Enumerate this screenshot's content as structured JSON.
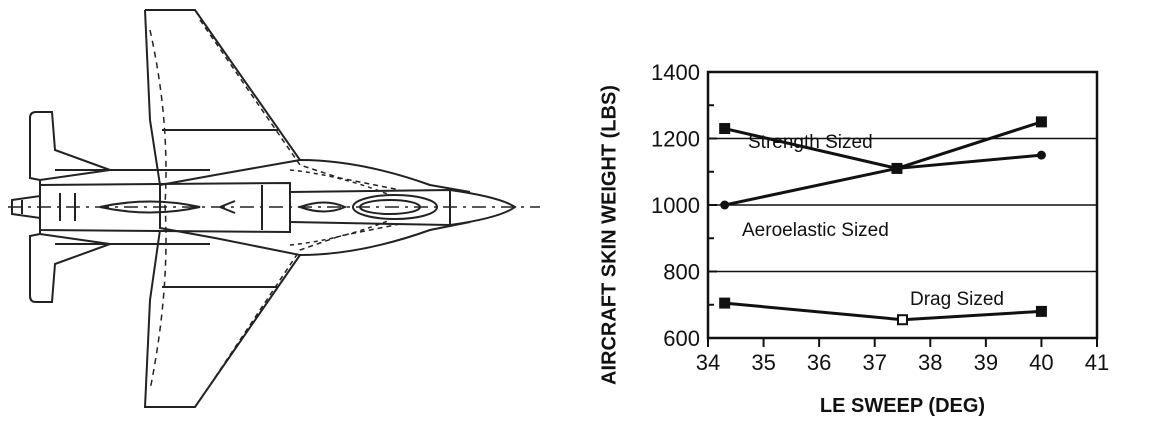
{
  "figure": {
    "drawing_icon": "aircraft-planform-icon"
  },
  "chart_data": {
    "type": "line",
    "title": "",
    "xlabel": "LE SWEEP (DEG)",
    "ylabel": "AIRCRAFT SKIN WEIGHT (LBS)",
    "xlim": [
      34,
      41
    ],
    "ylim": [
      600,
      1400
    ],
    "x_ticks": [
      "34",
      "35",
      "36",
      "37",
      "38",
      "39",
      "40",
      "41"
    ],
    "y_ticks": [
      "600",
      "800",
      "1000",
      "1200",
      "1400"
    ],
    "grid": "horizontal",
    "series": [
      {
        "name": "Strength Sized",
        "marker": "square",
        "points": [
          [
            34.3,
            1230
          ],
          [
            37.4,
            1110
          ],
          [
            40.0,
            1250
          ]
        ]
      },
      {
        "name": "Aeroelastic Sized",
        "marker": "circle",
        "points": [
          [
            34.3,
            1000
          ],
          [
            37.4,
            1110
          ],
          [
            40.0,
            1150
          ]
        ]
      },
      {
        "name": "Drag Sized",
        "marker": "square",
        "points": [
          [
            34.3,
            705
          ],
          [
            37.5,
            655
          ],
          [
            40.0,
            680
          ]
        ]
      }
    ]
  }
}
